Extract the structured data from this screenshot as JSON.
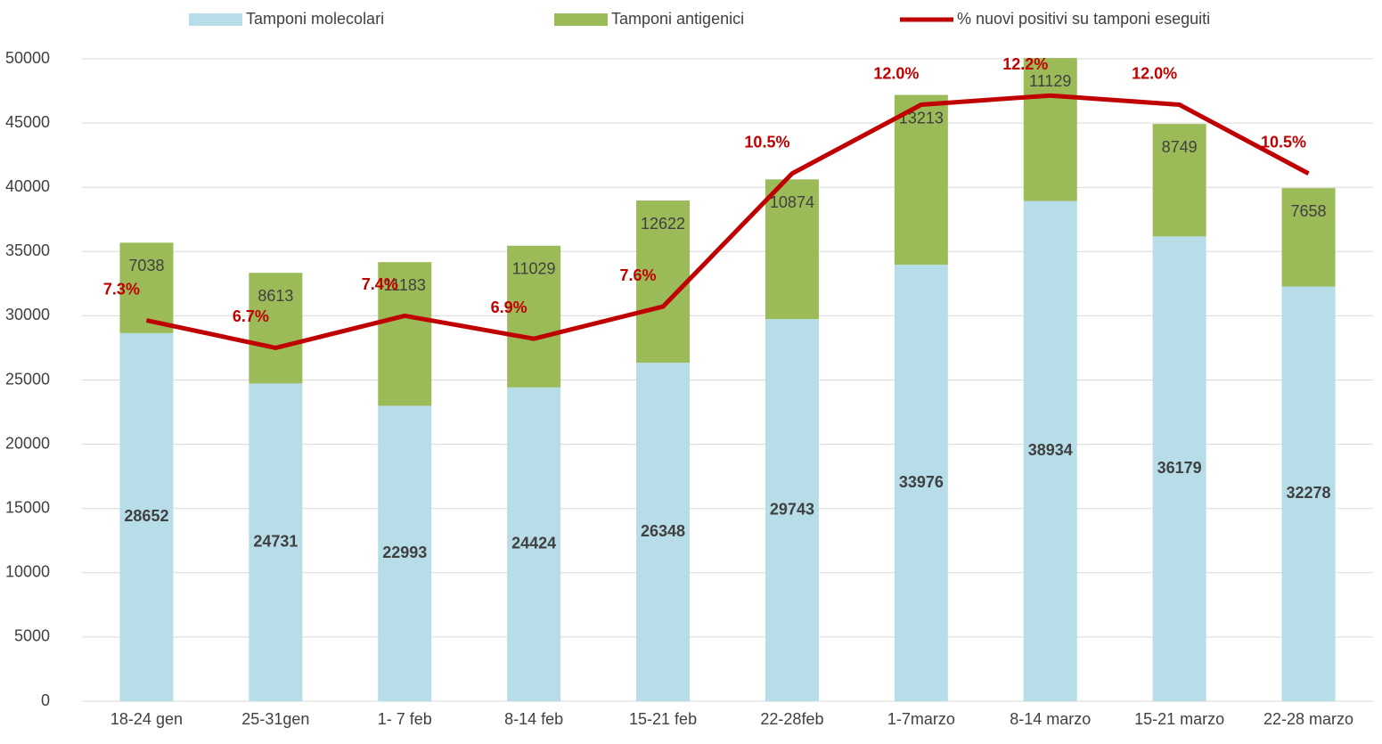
{
  "chart_data": {
    "type": "bar",
    "stacked": true,
    "categories": [
      "18-24 gen",
      "25-31gen",
      "1- 7 feb",
      "8-14 feb",
      "15-21 feb",
      "22-28feb",
      "1-7marzo",
      "8-14 marzo",
      "15-21 marzo",
      "22-28 marzo"
    ],
    "series": [
      {
        "name": "Tamponi molecolari",
        "type": "bar",
        "color": "#b7dde8",
        "values": [
          28652,
          24731,
          22993,
          24424,
          26348,
          29743,
          33976,
          38934,
          36179,
          32278
        ]
      },
      {
        "name": "Tamponi antigenici",
        "type": "bar",
        "color": "#9bbb59",
        "values": [
          7038,
          8613,
          11183,
          11029,
          12622,
          10874,
          13213,
          11129,
          8749,
          7658
        ]
      },
      {
        "name": "% nuovi positivi su tamponi eseguiti",
        "type": "line",
        "axis": "y2",
        "color": "#c00000",
        "values": [
          7.3,
          6.7,
          7.4,
          6.9,
          7.6,
          10.5,
          12.0,
          12.2,
          12.0,
          10.5
        ],
        "value_labels": [
          "7.3%",
          "6.7%",
          "7.4%",
          "6.9%",
          "7.6%",
          "10.5%",
          "12.0%",
          "12.2%",
          "12.0%",
          "10.5%"
        ]
      }
    ],
    "ylim": [
      0,
      50000
    ],
    "yticks": [
      0,
      5000,
      10000,
      15000,
      20000,
      25000,
      30000,
      35000,
      40000,
      45000,
      50000
    ],
    "y2lim": [
      -1,
      13
    ],
    "grid": true,
    "legend": "top"
  }
}
